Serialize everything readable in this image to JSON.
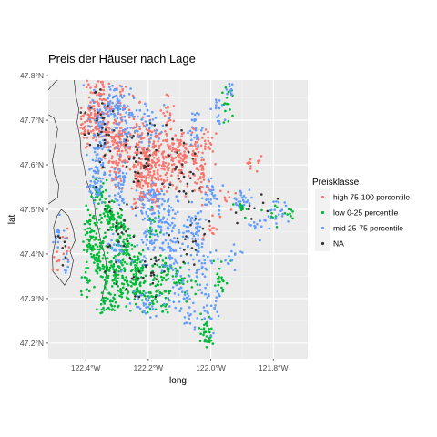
{
  "chart_data": {
    "type": "scatter",
    "title": "Preis der Häuser nach Lage",
    "xlabel": "long",
    "ylabel": "lat",
    "xlim": [
      -122.52,
      -121.69
    ],
    "ylim": [
      47.165,
      47.79
    ],
    "x_ticks": [
      {
        "value": -122.4,
        "label": "122.4°W"
      },
      {
        "value": -122.2,
        "label": "122.2°W"
      },
      {
        "value": -122.0,
        "label": "122.0°W"
      },
      {
        "value": -121.8,
        "label": "121.8°W"
      }
    ],
    "y_ticks": [
      {
        "value": 47.2,
        "label": "47.2°N"
      },
      {
        "value": 47.3,
        "label": "47.3°N"
      },
      {
        "value": 47.4,
        "label": "47.4°N"
      },
      {
        "value": 47.5,
        "label": "47.5°N"
      },
      {
        "value": 47.6,
        "label": "47.6°N"
      },
      {
        "value": 47.7,
        "label": "47.7°N"
      },
      {
        "value": 47.8,
        "label": "47.8°N"
      }
    ],
    "grid": true,
    "legend": {
      "title": "Preisklasse",
      "position": "right",
      "entries": [
        {
          "label": "high 75-100 percentile",
          "color": "#F8766D"
        },
        {
          "label": "low 0-25 percentile",
          "color": "#00BA38"
        },
        {
          "label": "mid 25-75 percentile",
          "color": "#619CFF"
        },
        {
          "label": "NA",
          "color": "#333333"
        }
      ]
    },
    "coastline": [
      [
        [
          -122.437,
          47.79
        ],
        [
          -122.432,
          47.755
        ],
        [
          -122.422,
          47.725
        ],
        [
          -122.428,
          47.695
        ],
        [
          -122.418,
          47.66
        ],
        [
          -122.415,
          47.625
        ],
        [
          -122.405,
          47.595
        ],
        [
          -122.398,
          47.565
        ],
        [
          -122.385,
          47.54
        ],
        [
          -122.372,
          47.51
        ],
        [
          -122.368,
          47.48
        ],
        [
          -122.358,
          47.45
        ],
        [
          -122.352,
          47.43
        ],
        [
          -122.342,
          47.405
        ],
        [
          -122.335,
          47.38
        ],
        [
          -122.335,
          47.35
        ],
        [
          -122.342,
          47.32
        ],
        [
          -122.35,
          47.295
        ]
      ],
      [
        [
          -122.52,
          47.713
        ],
        [
          -122.502,
          47.705
        ],
        [
          -122.49,
          47.68
        ],
        [
          -122.497,
          47.645
        ],
        [
          -122.507,
          47.61
        ],
        [
          -122.5,
          47.578
        ],
        [
          -122.486,
          47.555
        ],
        [
          -122.49,
          47.527
        ],
        [
          -122.52,
          47.512
        ]
      ],
      [
        [
          -122.52,
          47.768
        ],
        [
          -122.495,
          47.788
        ],
        [
          -122.49,
          47.79
        ]
      ],
      [
        [
          -122.478,
          47.5
        ],
        [
          -122.455,
          47.485
        ],
        [
          -122.44,
          47.455
        ],
        [
          -122.434,
          47.43
        ],
        [
          -122.45,
          47.405
        ],
        [
          -122.44,
          47.385
        ],
        [
          -122.45,
          47.35
        ],
        [
          -122.468,
          47.33
        ],
        [
          -122.485,
          47.345
        ],
        [
          -122.505,
          47.36
        ],
        [
          -122.507,
          47.395
        ],
        [
          -122.497,
          47.43
        ],
        [
          -122.503,
          47.46
        ],
        [
          -122.492,
          47.485
        ],
        [
          -122.478,
          47.5
        ]
      ]
    ],
    "point_clusters": [
      {
        "series": "high 75-100 percentile",
        "color": "#F8766D",
        "points": [
          [
            -122.37,
            47.72,
            0.025,
            0.06,
            70
          ],
          [
            -122.34,
            47.73,
            0.02,
            0.05,
            40
          ],
          [
            -122.29,
            47.71,
            0.02,
            0.05,
            45
          ],
          [
            -122.4,
            47.69,
            0.02,
            0.03,
            35
          ],
          [
            -122.32,
            47.65,
            0.03,
            0.05,
            60
          ],
          [
            -122.28,
            47.64,
            0.02,
            0.04,
            40
          ],
          [
            -122.23,
            47.63,
            0.03,
            0.06,
            80
          ],
          [
            -122.2,
            47.6,
            0.03,
            0.06,
            90
          ],
          [
            -122.16,
            47.62,
            0.03,
            0.05,
            70
          ],
          [
            -122.12,
            47.63,
            0.025,
            0.05,
            60
          ],
          [
            -122.09,
            47.61,
            0.02,
            0.04,
            40
          ],
          [
            -122.05,
            47.62,
            0.02,
            0.04,
            40
          ],
          [
            -122.3,
            47.6,
            0.015,
            0.04,
            30
          ],
          [
            -122.22,
            47.55,
            0.02,
            0.03,
            35
          ],
          [
            -122.17,
            47.55,
            0.02,
            0.03,
            30
          ],
          [
            -122.03,
            47.56,
            0.02,
            0.04,
            30
          ],
          [
            -122.01,
            47.65,
            0.015,
            0.03,
            20
          ],
          [
            -121.87,
            47.6,
            0.02,
            0.02,
            12
          ],
          [
            -121.99,
            47.46,
            0.02,
            0.03,
            14
          ],
          [
            -122.48,
            47.4,
            0.02,
            0.04,
            15
          ],
          [
            -122.14,
            47.72,
            0.02,
            0.03,
            15
          ],
          [
            -121.95,
            47.53,
            0.02,
            0.02,
            8
          ]
        ]
      },
      {
        "series": "low 0-25 percentile",
        "color": "#00BA38",
        "points": [
          [
            -122.33,
            47.5,
            0.02,
            0.03,
            50
          ],
          [
            -122.3,
            47.47,
            0.025,
            0.03,
            55
          ],
          [
            -122.36,
            47.53,
            0.015,
            0.02,
            25
          ],
          [
            -122.38,
            47.44,
            0.02,
            0.04,
            70
          ],
          [
            -122.35,
            47.38,
            0.02,
            0.04,
            70
          ],
          [
            -122.3,
            47.36,
            0.03,
            0.04,
            80
          ],
          [
            -122.27,
            47.42,
            0.02,
            0.03,
            40
          ],
          [
            -122.25,
            47.33,
            0.03,
            0.03,
            60
          ],
          [
            -122.18,
            47.3,
            0.04,
            0.03,
            60
          ],
          [
            -122.33,
            47.29,
            0.03,
            0.02,
            40
          ],
          [
            -122.23,
            47.37,
            0.02,
            0.03,
            40
          ],
          [
            -122.15,
            47.36,
            0.03,
            0.03,
            40
          ],
          [
            -122.01,
            47.22,
            0.02,
            0.02,
            35
          ],
          [
            -122.18,
            47.47,
            0.02,
            0.02,
            20
          ],
          [
            -121.95,
            47.74,
            0.015,
            0.03,
            15
          ],
          [
            -121.97,
            47.35,
            0.02,
            0.03,
            20
          ],
          [
            -122.09,
            47.33,
            0.03,
            0.03,
            25
          ],
          [
            -121.9,
            47.5,
            0.02,
            0.02,
            12
          ],
          [
            -122.4,
            47.33,
            0.01,
            0.03,
            15
          ],
          [
            -121.8,
            47.48,
            0.02,
            0.02,
            8
          ],
          [
            -121.75,
            47.49,
            0.02,
            0.015,
            8
          ]
        ]
      },
      {
        "series": "mid 25-75 percentile",
        "color": "#619CFF",
        "points": [
          [
            -122.35,
            47.7,
            0.03,
            0.05,
            60
          ],
          [
            -122.31,
            47.74,
            0.02,
            0.03,
            40
          ],
          [
            -122.27,
            47.69,
            0.03,
            0.05,
            50
          ],
          [
            -122.2,
            47.7,
            0.03,
            0.04,
            40
          ],
          [
            -122.36,
            47.6,
            0.02,
            0.05,
            45
          ],
          [
            -122.37,
            47.55,
            0.02,
            0.03,
            35
          ],
          [
            -122.29,
            47.55,
            0.02,
            0.04,
            40
          ],
          [
            -122.19,
            47.52,
            0.03,
            0.03,
            50
          ],
          [
            -122.14,
            47.48,
            0.03,
            0.05,
            60
          ],
          [
            -122.2,
            47.43,
            0.03,
            0.04,
            40
          ],
          [
            -122.12,
            47.4,
            0.03,
            0.04,
            50
          ],
          [
            -122.05,
            47.45,
            0.03,
            0.04,
            50
          ],
          [
            -122.02,
            47.37,
            0.03,
            0.05,
            40
          ],
          [
            -122.1,
            47.3,
            0.03,
            0.03,
            30
          ],
          [
            -122.0,
            47.28,
            0.02,
            0.03,
            25
          ],
          [
            -122.21,
            47.29,
            0.03,
            0.02,
            30
          ],
          [
            -122.0,
            47.53,
            0.02,
            0.03,
            30
          ],
          [
            -122.05,
            47.68,
            0.02,
            0.04,
            25
          ],
          [
            -121.98,
            47.72,
            0.015,
            0.03,
            15
          ],
          [
            -121.94,
            47.77,
            0.01,
            0.01,
            10
          ],
          [
            -121.9,
            47.52,
            0.025,
            0.02,
            25
          ],
          [
            -121.79,
            47.49,
            0.025,
            0.02,
            20
          ],
          [
            -121.85,
            47.47,
            0.02,
            0.02,
            12
          ],
          [
            -122.48,
            47.45,
            0.015,
            0.03,
            15
          ],
          [
            -122.46,
            47.38,
            0.015,
            0.02,
            10
          ],
          [
            -122.3,
            47.41,
            0.02,
            0.03,
            25
          ],
          [
            -122.06,
            47.24,
            0.02,
            0.02,
            12
          ],
          [
            -121.93,
            47.4,
            0.02,
            0.02,
            12
          ]
        ]
      },
      {
        "series": "NA",
        "color": "#333333",
        "points": [
          [
            -122.35,
            47.68,
            0.04,
            0.06,
            35
          ],
          [
            -122.22,
            47.62,
            0.05,
            0.06,
            35
          ],
          [
            -122.1,
            47.6,
            0.04,
            0.05,
            25
          ],
          [
            -122.3,
            47.45,
            0.04,
            0.06,
            25
          ],
          [
            -122.2,
            47.36,
            0.05,
            0.04,
            25
          ],
          [
            -122.07,
            47.45,
            0.04,
            0.06,
            20
          ],
          [
            -122.48,
            47.42,
            0.015,
            0.04,
            8
          ],
          [
            -121.85,
            47.5,
            0.04,
            0.03,
            10
          ]
        ]
      }
    ]
  }
}
